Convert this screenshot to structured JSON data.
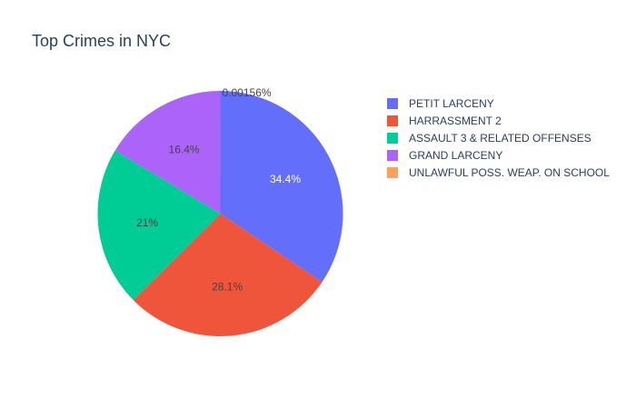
{
  "chart_data": {
    "type": "pie",
    "title": "Top Crimes in NYC",
    "categories": [
      "PETIT LARCENY",
      "HARRASSMENT 2",
      "ASSAULT 3 & RELATED OFFENSES",
      "GRAND LARCENY",
      "UNLAWFUL POSS. WEAP. ON SCHOOL"
    ],
    "values": [
      34.4,
      28.1,
      21.0,
      16.4,
      0.00156
    ],
    "labels": [
      "34.4%",
      "28.1%",
      "21%",
      "16.4%",
      "0.00156%"
    ],
    "colors": [
      "#636efa",
      "#EF553B",
      "#00cc96",
      "#ab63fa",
      "#FFA15A"
    ],
    "order": "descending, clockwise, starting at 12 o'clock",
    "legend_position": "right"
  }
}
